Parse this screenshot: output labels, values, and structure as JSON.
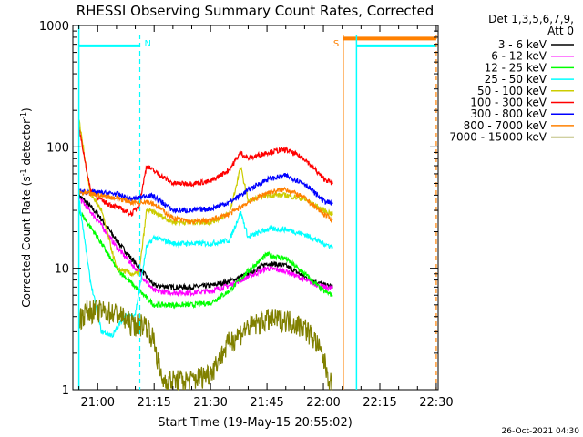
{
  "chart_data": {
    "type": "line",
    "title": "RHESSI Observing Summary Count Rates, Corrected",
    "xlabel": "Start Time (19-May-15 20:55:02)",
    "ylabel": "Corrected Count Rate (s⁻¹ detector⁻¹)",
    "ylabel_main": "Corrected Count Rate (s",
    "ylabel_sup1": "-1",
    "ylabel_mid": " detector",
    "ylabel_sup2": "-1",
    "ylabel_end": ")",
    "y_scale": "log",
    "ylim": [
      1,
      1000
    ],
    "xlim_minutes": [
      -1.6,
      95.5
    ],
    "x_ticks": [
      {
        "min": 5,
        "label": "21:00"
      },
      {
        "min": 20,
        "label": "21:15"
      },
      {
        "min": 35,
        "label": "21:30"
      },
      {
        "min": 50,
        "label": "21:45"
      },
      {
        "min": 65,
        "label": "22:00"
      },
      {
        "min": 80,
        "label": "22:15"
      },
      {
        "min": 95,
        "label": "22:30"
      }
    ],
    "y_ticks": [
      {
        "value": 1,
        "label": "1"
      },
      {
        "value": 10,
        "label": "10"
      },
      {
        "value": 100,
        "label": "100"
      },
      {
        "value": 1000,
        "label": "1000"
      }
    ],
    "legend_header": [
      "Det 1,3,5,6,7,9,",
      "Att 0"
    ],
    "legend_position": "right",
    "series": [
      {
        "name": "3 - 6 keV",
        "color": "#000000",
        "x": [
          0,
          5,
          10,
          15,
          20,
          25,
          30,
          35,
          40,
          45,
          50,
          55,
          60,
          65,
          67.5
        ],
        "values": [
          40,
          28,
          17,
          11,
          7.2,
          7,
          7,
          7.2,
          7.8,
          9,
          11,
          10.5,
          8.5,
          7.3,
          7
        ]
      },
      {
        "name": "6 - 12 keV",
        "color": "#ff00ff",
        "x": [
          0,
          5,
          10,
          15,
          20,
          25,
          30,
          35,
          40,
          45,
          50,
          55,
          60,
          65,
          67.5
        ],
        "values": [
          38,
          25,
          15,
          10,
          6.5,
          6.3,
          6.3,
          6.5,
          7.2,
          8.5,
          10,
          9.5,
          8,
          7,
          6.8
        ]
      },
      {
        "name": "12 - 25 keV",
        "color": "#00ff00",
        "x": [
          0,
          5,
          10,
          15,
          20,
          25,
          30,
          35,
          40,
          45,
          50,
          55,
          60,
          65,
          67.5
        ],
        "values": [
          30,
          18,
          10,
          7,
          5,
          5,
          5,
          5.2,
          6.5,
          9.5,
          13,
          12,
          9,
          6.5,
          6
        ]
      },
      {
        "name": "25 - 50 keV",
        "color": "#00ffff",
        "x": [
          0,
          3,
          6,
          9,
          12,
          15,
          18,
          20,
          25,
          30,
          35,
          40,
          43,
          45,
          50,
          55,
          60,
          65,
          67.5
        ],
        "values": [
          38,
          8,
          3,
          2.8,
          4,
          4.2,
          15,
          18,
          16,
          16,
          16,
          17,
          29,
          18,
          21,
          21,
          19,
          16,
          15
        ]
      },
      {
        "name": "50 - 100 keV",
        "color": "#cccc00",
        "x": [
          0,
          3,
          6,
          10,
          14,
          16,
          18,
          20,
          25,
          30,
          35,
          40,
          43,
          45,
          50,
          55,
          60,
          65,
          67.5
        ],
        "values": [
          170,
          42,
          30,
          10,
          9,
          9,
          30,
          29,
          24,
          24,
          24,
          28,
          68,
          36,
          40,
          40,
          37,
          30,
          28
        ]
      },
      {
        "name": "100 - 300 keV",
        "color": "#ff0000",
        "x": [
          0,
          3,
          6,
          10,
          14,
          16,
          18,
          20,
          25,
          30,
          35,
          40,
          43,
          45,
          50,
          55,
          60,
          65,
          67.5
        ],
        "values": [
          145,
          45,
          36,
          32,
          28,
          33,
          70,
          63,
          50,
          50,
          52,
          65,
          90,
          80,
          90,
          95,
          80,
          55,
          50
        ]
      },
      {
        "name": "300 - 800 keV",
        "color": "#0000ff",
        "x": [
          0,
          5,
          10,
          14,
          16,
          18,
          20,
          25,
          30,
          35,
          40,
          45,
          50,
          55,
          60,
          65,
          67.5
        ],
        "values": [
          43,
          42,
          41,
          37,
          38,
          40,
          39,
          30,
          30,
          31,
          35,
          44,
          54,
          58,
          50,
          36,
          34
        ]
      },
      {
        "name": "800 - 7000 keV",
        "color": "#ff8000",
        "x": [
          0,
          5,
          10,
          14,
          16,
          18,
          20,
          25,
          30,
          35,
          40,
          45,
          50,
          55,
          60,
          65,
          67.5
        ],
        "values": [
          42,
          40,
          38,
          35,
          35,
          36,
          34,
          26,
          24,
          25,
          28,
          35,
          42,
          45,
          38,
          28,
          25
        ]
      },
      {
        "name": "7000 - 15000 keV",
        "color": "#808000",
        "x": [
          0,
          2,
          5,
          10,
          14,
          16,
          18,
          20,
          22,
          25,
          30,
          35,
          40,
          45,
          50,
          55,
          60,
          63,
          65,
          67.5
        ],
        "values": [
          3.8,
          4.5,
          4.5,
          4.3,
          3.5,
          3.5,
          3.5,
          2.5,
          1.2,
          1.2,
          1.2,
          1.4,
          2.5,
          3.3,
          3.8,
          3.8,
          3.3,
          2.5,
          1.8,
          1
        ]
      }
    ],
    "annotations": [
      {
        "label": "N",
        "min": 16.2,
        "color": "#00ffff"
      },
      {
        "label": "S",
        "min": 70.3,
        "color": "#ff8000"
      }
    ],
    "state_bars": [
      {
        "type": "night",
        "color": "#00ffff",
        "x_start": 0,
        "x_end": 16.2,
        "level": 680
      },
      {
        "type": "night",
        "color": "#00ffff",
        "x_start": 73.8,
        "x_end": 95,
        "level": 680
      },
      {
        "type": "saa",
        "color": "#ff8000",
        "x_start": 70.3,
        "x_end": 95,
        "level": 780
      }
    ]
  },
  "footer_date": "26-Oct-2021 04:30"
}
